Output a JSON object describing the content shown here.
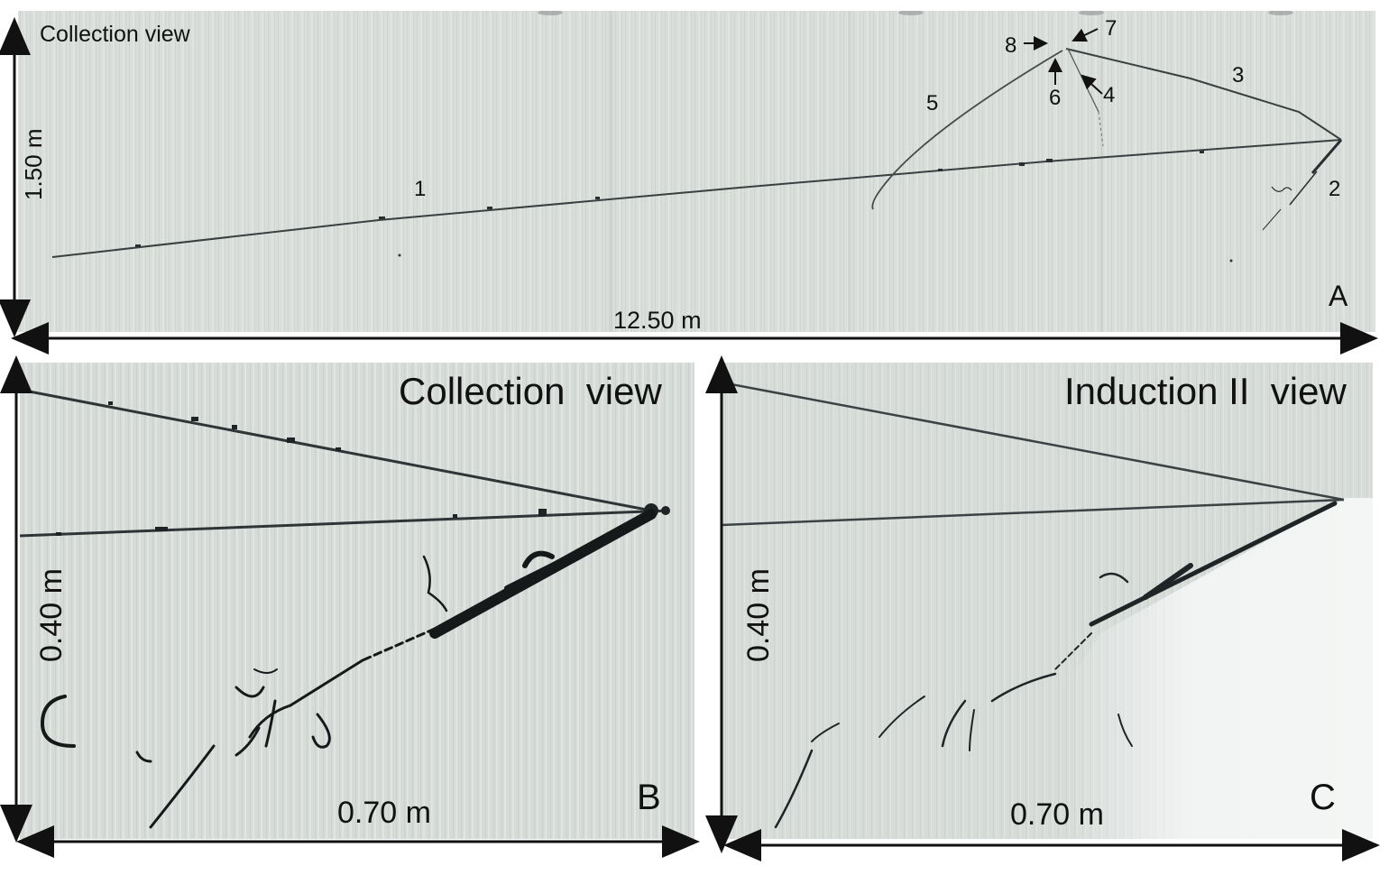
{
  "panel_a": {
    "title": "Collection view",
    "letter": "A",
    "height_label": "1.50 m",
    "width_label": "12.50 m",
    "track_numbers": [
      "1",
      "2",
      "3",
      "4",
      "5",
      "6",
      "7",
      "8"
    ]
  },
  "panel_b": {
    "title": "Collection  view",
    "letter": "B",
    "height_label": "0.40 m",
    "width_label": "0.70 m"
  },
  "panel_c": {
    "title": "Induction II  view",
    "letter": "C",
    "height_label": "0.40 m",
    "width_label": "0.70 m"
  },
  "colors": {
    "background": "#d8dcd9",
    "track": "#2c3133",
    "arrow": "#111111"
  }
}
